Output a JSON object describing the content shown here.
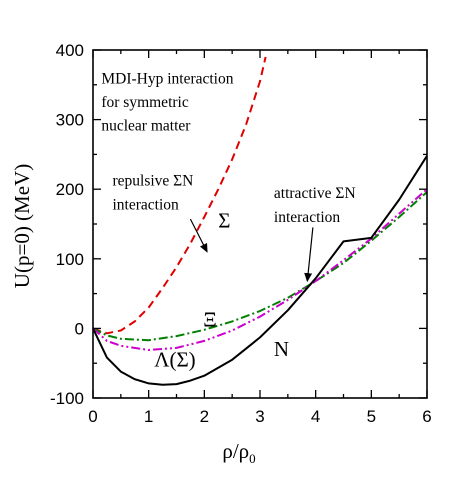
{
  "chart_data": {
    "type": "line",
    "xlabel": "ρ/ρ",
    "xlabel_sub": "0",
    "ylabel": "U(p=0) (MeV)",
    "xlim": [
      0,
      6
    ],
    "ylim": [
      -100,
      400
    ],
    "xticks": [
      0,
      1,
      2,
      3,
      4,
      5,
      6
    ],
    "yticks": [
      -100,
      0,
      100,
      200,
      300,
      400
    ],
    "grid": false,
    "legend": "none",
    "series": [
      {
        "name": "Σ",
        "color": "#e00000",
        "style": "dashed",
        "x": [
          0,
          0.25,
          0.5,
          0.75,
          1.0,
          1.25,
          1.5,
          1.75,
          2.0,
          2.25,
          2.5,
          2.75,
          3.0,
          3.1
        ],
        "y": [
          0,
          -7,
          -3,
          10,
          30,
          58,
          88,
          122,
          160,
          200,
          243,
          293,
          355,
          390
        ]
      },
      {
        "name": "Ξ",
        "color": "#008000",
        "style": "dash-dot",
        "x": [
          0,
          0.25,
          0.5,
          1.0,
          1.5,
          2.0,
          2.5,
          3.0,
          3.5,
          4.0,
          4.5,
          5.0,
          5.5,
          6.0
        ],
        "y": [
          0,
          -10,
          -15,
          -17,
          -11,
          -2,
          10,
          25,
          44,
          68,
          94,
          126,
          160,
          196
        ]
      },
      {
        "name": "Λ(Σ)",
        "color": "#cc00cc",
        "style": "dash-dot-dot",
        "x": [
          0,
          0.25,
          0.5,
          1.0,
          1.5,
          2.0,
          2.5,
          3.0,
          3.5,
          4.0,
          4.5,
          5.0,
          5.5,
          6.0
        ],
        "y": [
          0,
          -18,
          -25,
          -31,
          -28,
          -18,
          -3,
          17,
          41,
          68,
          98,
          129,
          165,
          200
        ]
      },
      {
        "name": "N",
        "color": "#000000",
        "style": "solid",
        "x": [
          0,
          0.25,
          0.5,
          0.75,
          1.0,
          1.25,
          1.5,
          1.75,
          2.0,
          2.5,
          3.0,
          3.5,
          4.0,
          4.5,
          5.0,
          5.5,
          6.0
        ],
        "y": [
          0,
          -42,
          -62,
          -73,
          -79,
          -81,
          -80,
          -75,
          -68,
          -45,
          -13,
          26,
          72,
          125,
          130,
          185,
          248
        ]
      }
    ],
    "annotations": [
      {
        "text": "MDI-Hyp interaction",
        "x": 0.15,
        "y": 352
      },
      {
        "text": "for symmetric",
        "x": 0.15,
        "y": 318
      },
      {
        "text": "nuclear matter",
        "x": 0.15,
        "y": 284
      },
      {
        "text": "repulsive ΣN",
        "x": 0.35,
        "y": 205
      },
      {
        "text": "interaction",
        "x": 0.35,
        "y": 171
      },
      {
        "text": "attractive ΣN",
        "x": 3.25,
        "y": 187
      },
      {
        "text": "interaction",
        "x": 3.25,
        "y": 153
      }
    ],
    "curve_labels": [
      {
        "text": "Σ",
        "x": 2.25,
        "y": 145
      },
      {
        "text": "Ξ",
        "x": 1.98,
        "y": 3
      },
      {
        "text": "Λ(Σ)",
        "x": 1.1,
        "y": -55
      },
      {
        "text": "N",
        "x": 3.25,
        "y": -40
      }
    ],
    "arrows": [
      {
        "from": [
          1.75,
          157
        ],
        "to": [
          2.05,
          110
        ]
      },
      {
        "from": [
          3.95,
          145
        ],
        "to": [
          3.85,
          68
        ]
      }
    ]
  }
}
